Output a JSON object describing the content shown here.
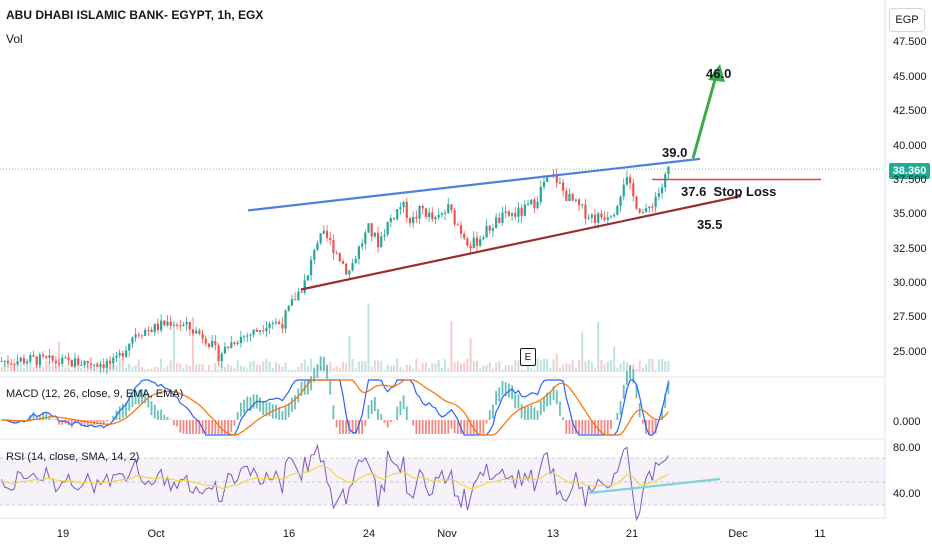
{
  "header": {
    "title": "ABU DHABI ISLAMIC BANK- EGYPT, 1h, EGX",
    "volume_label": "Vol",
    "currency_button": "EGP"
  },
  "current_price": "38.360",
  "earnings_marker": "E",
  "annotations": {
    "target": "46.0",
    "breakout": "39.0",
    "stop": "37.6  Stop Loss",
    "support": "35.5"
  },
  "macd": {
    "label": "MACD (12, 26, close, 9, EMA, EMA)",
    "zero_tick": "0.000"
  },
  "rsi": {
    "label": "RSI (14, close, SMA, 14, 2)",
    "tick_high": "80.00",
    "tick_low": "40.00"
  },
  "colors": {
    "up": "#26a69a",
    "down": "#ef5350",
    "upper_trendline": "#4f7fe0",
    "lower_trendline": "#9b2d2d",
    "stop_line": "#e0454a",
    "target_arrow": "#3dab4b",
    "macd_line": "#2962ff",
    "signal_line": "#ff6d00",
    "rsi_line": "#7e57c2",
    "rsi_ma": "#f5d547",
    "rsi_divergence": "#7fd3d3"
  },
  "chart_data": {
    "type": "candlestick",
    "x_tick_labels": [
      "19",
      "Oct",
      "16",
      "24",
      "Nov",
      "13",
      "21",
      "Dec",
      "11"
    ],
    "y_tick_labels": [
      "47.500",
      "45.000",
      "42.500",
      "40.000",
      "37.500",
      "35.000",
      "32.500",
      "30.000",
      "27.500",
      "25.000"
    ],
    "y_ticks": [
      47.5,
      45.0,
      42.5,
      40.0,
      37.5,
      35.0,
      32.5,
      30.0,
      27.5,
      25.0
    ],
    "ylim": [
      23.6,
      49.2
    ],
    "last_close": 38.36,
    "approx_close_path": [
      [
        0,
        24.4
      ],
      [
        0.05,
        24.5
      ],
      [
        0.09,
        24.3
      ],
      [
        0.13,
        24.3
      ],
      [
        0.17,
        24.2
      ],
      [
        0.2,
        26.5
      ],
      [
        0.23,
        26.8
      ],
      [
        0.255,
        27.3
      ],
      [
        0.28,
        26.8
      ],
      [
        0.305,
        26.2
      ],
      [
        0.325,
        24.8
      ],
      [
        0.35,
        26.0
      ],
      [
        0.38,
        26.5
      ],
      [
        0.4,
        27.3
      ],
      [
        0.42,
        27.1
      ],
      [
        0.44,
        29.0
      ],
      [
        0.46,
        30.5
      ],
      [
        0.47,
        33.0
      ],
      [
        0.485,
        33.5
      ],
      [
        0.5,
        32.5
      ],
      [
        0.52,
        30.8
      ],
      [
        0.535,
        32.5
      ],
      [
        0.55,
        34.0
      ],
      [
        0.565,
        33.0
      ],
      [
        0.58,
        34.5
      ],
      [
        0.6,
        35.8
      ],
      [
        0.615,
        34.5
      ],
      [
        0.63,
        35.5
      ],
      [
        0.65,
        34.5
      ],
      [
        0.67,
        35.5
      ],
      [
        0.69,
        33.8
      ],
      [
        0.705,
        32.8
      ],
      [
        0.72,
        33.5
      ],
      [
        0.74,
        34.5
      ],
      [
        0.76,
        35.0
      ],
      [
        0.78,
        35.2
      ],
      [
        0.8,
        36.0
      ],
      [
        0.815,
        37.5
      ],
      [
        0.83,
        37.8
      ],
      [
        0.845,
        36.5
      ],
      [
        0.86,
        35.8
      ],
      [
        0.875,
        35.2
      ],
      [
        0.89,
        34.8
      ],
      [
        0.905,
        35.0
      ],
      [
        0.92,
        35.5
      ],
      [
        0.935,
        37.8
      ],
      [
        0.95,
        36.0
      ],
      [
        0.965,
        35.0
      ],
      [
        0.98,
        36.3
      ],
      [
        0.99,
        37.0
      ],
      [
        1.0,
        38.36
      ]
    ],
    "levels": {
      "target": 46.0,
      "breakout": 39.0,
      "stop_loss": 37.6,
      "support": 35.5
    }
  }
}
